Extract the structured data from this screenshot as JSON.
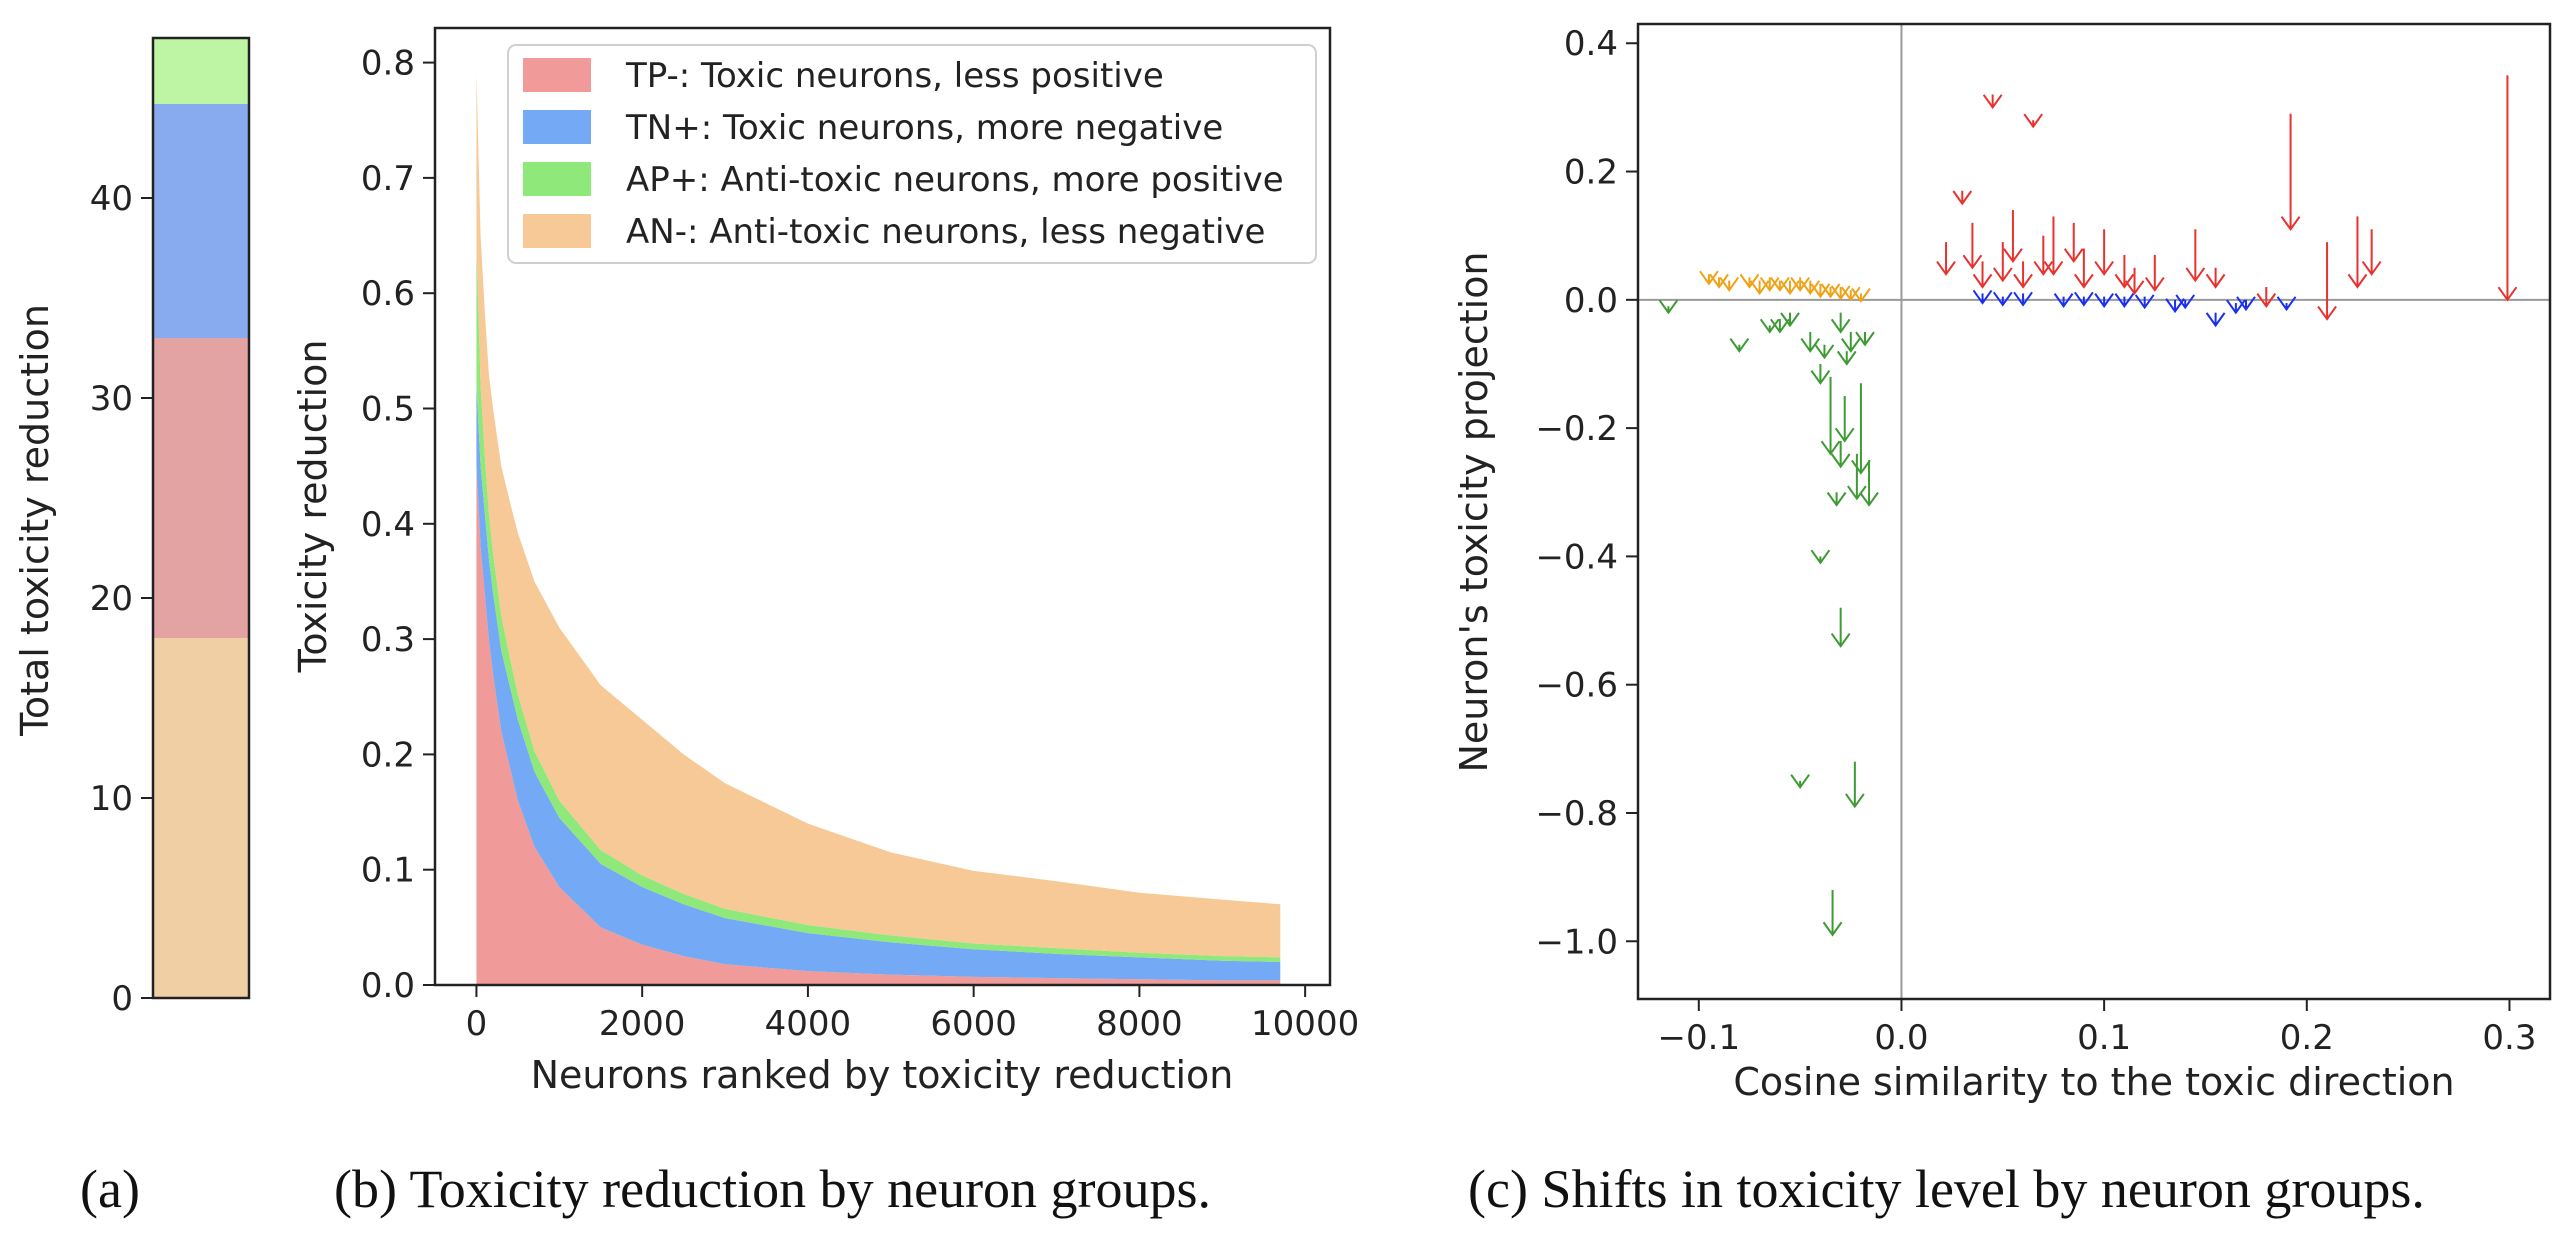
{
  "chart_data": [
    {
      "type": "bar",
      "stacked": true,
      "title": "",
      "xlabel": "",
      "ylabel": "Total toxicity reduction",
      "ylim": [
        0,
        48
      ],
      "yticks": [
        0,
        10,
        20,
        30,
        40
      ],
      "grid": false,
      "series": [
        {
          "key": "AN-",
          "value": 18.0,
          "color": "#f1cfa4"
        },
        {
          "key": "TP-",
          "value": 15.0,
          "color": "#e3a3a3"
        },
        {
          "key": "TN+",
          "value": 11.7,
          "color": "#88abf0"
        },
        {
          "key": "AP+",
          "value": 3.3,
          "color": "#bdf5a5"
        }
      ]
    },
    {
      "type": "area",
      "stacked": true,
      "title": "",
      "xlabel": "Neurons ranked by toxicity reduction",
      "ylabel": "Toxicity reduction",
      "xlim": [
        -500,
        10300
      ],
      "ylim": [
        0,
        0.83
      ],
      "xticks": [
        0,
        2000,
        4000,
        6000,
        8000,
        10000
      ],
      "yticks": [
        0.0,
        0.1,
        0.2,
        0.3,
        0.4,
        0.5,
        0.6,
        0.7,
        0.8
      ],
      "grid": false,
      "legend": "top-right",
      "x": [
        0,
        50,
        100,
        150,
        200,
        300,
        400,
        500,
        700,
        1000,
        1500,
        2000,
        2500,
        3000,
        4000,
        5000,
        6000,
        7000,
        8000,
        9000,
        9700
      ],
      "series": [
        {
          "name": "TP-: Toxic neurons, less positive",
          "color": "#f09a9a",
          "values": [
            0.45,
            0.38,
            0.34,
            0.3,
            0.27,
            0.22,
            0.19,
            0.16,
            0.12,
            0.085,
            0.05,
            0.035,
            0.025,
            0.018,
            0.012,
            0.009,
            0.007,
            0.006,
            0.005,
            0.004,
            0.004
          ]
        },
        {
          "name": "TN+: Toxic neurons, more negative",
          "color": "#74a9f5",
          "values": [
            0.07,
            0.07,
            0.07,
            0.07,
            0.07,
            0.07,
            0.07,
            0.07,
            0.065,
            0.06,
            0.055,
            0.05,
            0.045,
            0.04,
            0.033,
            0.028,
            0.024,
            0.021,
            0.019,
            0.017,
            0.016
          ]
        },
        {
          "name": "AP+: Anti-toxic neurons, more positive",
          "color": "#8ee87a",
          "values": [
            0.12,
            0.07,
            0.05,
            0.04,
            0.035,
            0.03,
            0.025,
            0.022,
            0.018,
            0.015,
            0.012,
            0.01,
            0.009,
            0.008,
            0.007,
            0.006,
            0.005,
            0.005,
            0.004,
            0.004,
            0.004
          ]
        },
        {
          "name": "AN-: Anti-toxic neurons, less negative",
          "color": "#f6c996",
          "values": [
            0.15,
            0.13,
            0.125,
            0.12,
            0.125,
            0.13,
            0.135,
            0.14,
            0.147,
            0.15,
            0.143,
            0.135,
            0.121,
            0.109,
            0.088,
            0.072,
            0.063,
            0.058,
            0.052,
            0.049,
            0.046
          ]
        }
      ]
    },
    {
      "type": "scatter",
      "title": "",
      "xlabel": "Cosine similarity to the toxic direction",
      "ylabel": "Neuron's toxicity projection",
      "xlim": [
        -0.13,
        0.32
      ],
      "ylim": [
        -1.09,
        0.43
      ],
      "xticks": [
        -0.1,
        0.0,
        0.1,
        0.2,
        0.3
      ],
      "xtick_labels": [
        "−0.1",
        "0.0",
        "0.1",
        "0.2",
        "0.3"
      ],
      "yticks": [
        0.4,
        0.2,
        0.0,
        -0.2,
        -0.4,
        -0.6,
        -0.8,
        -1.0
      ],
      "ytick_labels": [
        "0.4",
        "0.2",
        "0.0",
        "−0.2",
        "−0.4",
        "−0.6",
        "−0.8",
        "−1.0"
      ],
      "grid": false,
      "reference_lines": {
        "x": 0.0,
        "y": 0.0
      },
      "arrow_groups": [
        {
          "key": "TP-",
          "color": "#e8322f",
          "arrows": [
            [
              0.03,
              0.17,
              0.15
            ],
            [
              0.045,
              0.32,
              0.3
            ],
            [
              0.065,
              0.28,
              0.27
            ],
            [
              0.192,
              0.29,
              0.11
            ],
            [
              0.299,
              0.35,
              0.0
            ],
            [
              0.085,
              0.12,
              0.06
            ],
            [
              0.1,
              0.11,
              0.04
            ],
            [
              0.125,
              0.07,
              0.015
            ],
            [
              0.21,
              0.09,
              -0.03
            ],
            [
              0.225,
              0.13,
              0.02
            ],
            [
              0.232,
              0.11,
              0.04
            ],
            [
              0.145,
              0.11,
              0.03
            ],
            [
              0.155,
              0.05,
              0.02
            ],
            [
              0.022,
              0.09,
              0.04
            ],
            [
              0.035,
              0.12,
              0.05
            ],
            [
              0.05,
              0.09,
              0.03
            ],
            [
              0.055,
              0.14,
              0.06
            ],
            [
              0.07,
              0.1,
              0.04
            ],
            [
              0.075,
              0.13,
              0.04
            ],
            [
              0.09,
              0.08,
              0.02
            ],
            [
              0.11,
              0.07,
              0.02
            ],
            [
              0.115,
              0.05,
              0.01
            ],
            [
              0.18,
              0.02,
              -0.01
            ],
            [
              0.04,
              0.06,
              0.02
            ],
            [
              0.06,
              0.06,
              0.02
            ]
          ]
        },
        {
          "key": "TN+",
          "color": "#1a2ff0",
          "arrows": [
            [
              0.04,
              0.01,
              -0.005
            ],
            [
              0.06,
              0.01,
              -0.008
            ],
            [
              0.08,
              0.005,
              -0.01
            ],
            [
              0.1,
              0.005,
              -0.01
            ],
            [
              0.12,
              0.005,
              -0.012
            ],
            [
              0.135,
              0.0,
              -0.018
            ],
            [
              0.155,
              -0.02,
              -0.04
            ],
            [
              0.17,
              0.0,
              -0.015
            ],
            [
              0.19,
              -0.005,
              -0.015
            ],
            [
              0.05,
              0.005,
              -0.008
            ],
            [
              0.09,
              0.005,
              -0.008
            ],
            [
              0.11,
              0.005,
              -0.01
            ],
            [
              0.14,
              0.0,
              -0.012
            ],
            [
              0.165,
              -0.005,
              -0.02
            ]
          ]
        },
        {
          "key": "AP+",
          "color": "#3e9a35",
          "arrows": [
            [
              -0.115,
              -0.01,
              -0.02
            ],
            [
              -0.08,
              -0.07,
              -0.08
            ],
            [
              -0.065,
              -0.04,
              -0.05
            ],
            [
              -0.04,
              -0.1,
              -0.13
            ],
            [
              -0.035,
              -0.12,
              -0.24
            ],
            [
              -0.03,
              -0.22,
              -0.26
            ],
            [
              -0.028,
              -0.15,
              -0.22
            ],
            [
              -0.02,
              -0.13,
              -0.27
            ],
            [
              -0.022,
              -0.24,
              -0.31
            ],
            [
              -0.03,
              -0.48,
              -0.54
            ],
            [
              -0.04,
              -0.4,
              -0.41
            ],
            [
              -0.05,
              -0.75,
              -0.76
            ],
            [
              -0.023,
              -0.72,
              -0.79
            ],
            [
              -0.034,
              -0.92,
              -0.99
            ],
            [
              -0.045,
              -0.05,
              -0.08
            ],
            [
              -0.055,
              -0.02,
              -0.04
            ],
            [
              -0.025,
              -0.05,
              -0.08
            ],
            [
              -0.018,
              -0.05,
              -0.07
            ],
            [
              -0.03,
              -0.02,
              -0.05
            ],
            [
              -0.06,
              -0.03,
              -0.05
            ],
            [
              -0.038,
              -0.07,
              -0.09
            ],
            [
              -0.027,
              -0.08,
              -0.1
            ],
            [
              -0.016,
              -0.25,
              -0.32
            ],
            [
              -0.032,
              -0.3,
              -0.32
            ]
          ]
        },
        {
          "key": "AN-",
          "color": "#f0a216",
          "arrows": [
            [
              -0.095,
              0.04,
              0.025
            ],
            [
              -0.09,
              0.035,
              0.02
            ],
            [
              -0.085,
              0.03,
              0.015
            ],
            [
              -0.075,
              0.035,
              0.02
            ],
            [
              -0.07,
              0.03,
              0.01
            ],
            [
              -0.065,
              0.035,
              0.015
            ],
            [
              -0.06,
              0.03,
              0.015
            ],
            [
              -0.055,
              0.03,
              0.01
            ],
            [
              -0.05,
              0.035,
              0.015
            ],
            [
              -0.045,
              0.03,
              0.01
            ],
            [
              -0.04,
              0.025,
              0.005
            ],
            [
              -0.035,
              0.02,
              0.005
            ],
            [
              -0.03,
              0.02,
              0.002
            ],
            [
              -0.025,
              0.015,
              0.0
            ],
            [
              -0.02,
              0.01,
              -0.002
            ]
          ]
        }
      ]
    }
  ],
  "captions": {
    "a": "(a)",
    "b": "(b) Toxicity reduction by neuron groups.",
    "c": "(c) Shifts in toxicity level by neuron groups."
  }
}
